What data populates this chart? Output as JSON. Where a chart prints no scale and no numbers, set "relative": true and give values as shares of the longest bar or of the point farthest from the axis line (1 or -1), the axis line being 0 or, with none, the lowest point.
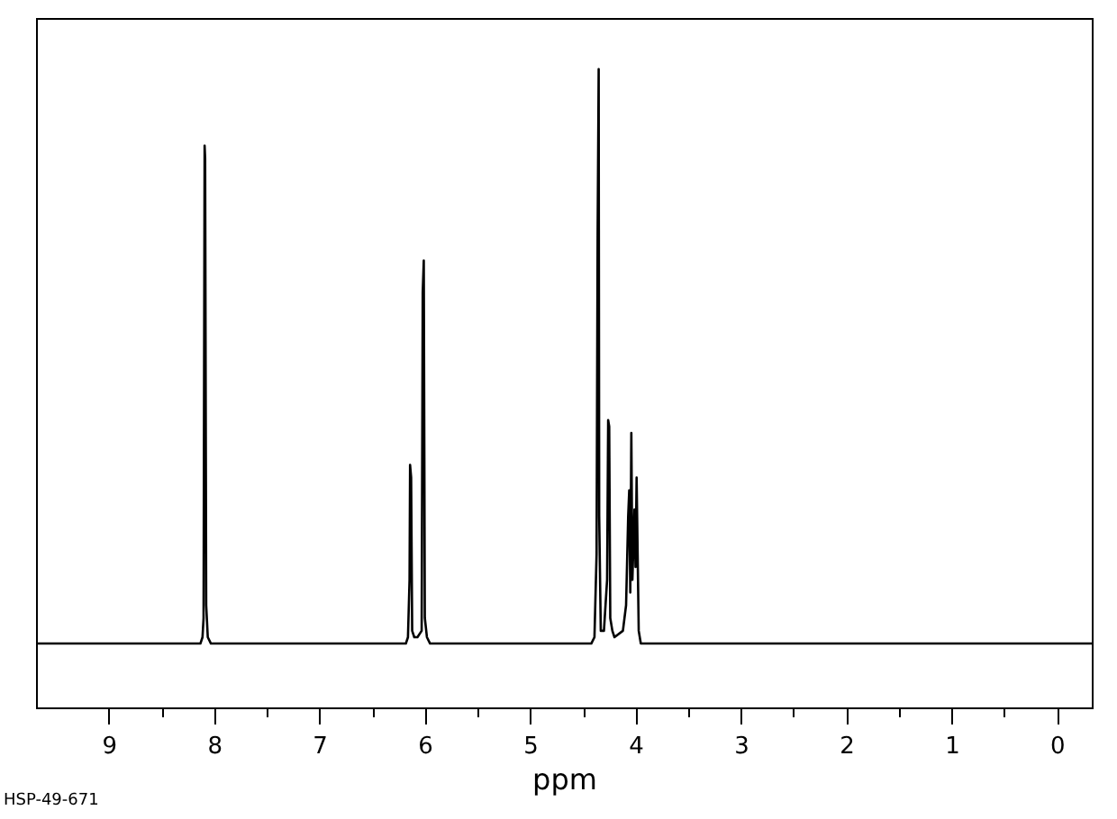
{
  "chart_data": {
    "type": "line",
    "relative": true,
    "xlabel": "ppm",
    "annotations": [
      "HSP-49-671"
    ],
    "xlim": [
      9.69,
      -0.33
    ],
    "xticks": [
      9,
      {
        "value": 8.5,
        "label": null
      },
      8,
      {
        "value": 7.5,
        "label": null
      },
      7,
      {
        "value": 6.5,
        "label": null
      },
      6,
      {
        "value": 5.5,
        "label": null
      },
      5,
      {
        "value": 4.5,
        "label": null
      },
      4,
      {
        "value": 3.5,
        "label": null
      },
      3,
      {
        "value": 2.5,
        "label": null
      },
      2,
      {
        "value": 1.5,
        "label": null
      },
      1,
      {
        "value": 0.5,
        "label": null
      },
      0
    ],
    "grid": false,
    "series": [
      {
        "color": "#000000",
        "x": [
          9.69,
          8.5,
          8.13,
          8.11,
          8.1,
          8.09,
          8.085,
          8.075,
          8.06,
          8.03,
          7.0,
          6.18,
          6.16,
          6.145,
          6.14,
          6.13,
          6.12,
          6.1,
          6.07,
          6.03,
          6.02,
          6.01,
          6.0,
          5.98,
          5.95,
          4.42,
          4.39,
          4.37,
          4.36,
          4.35,
          4.345,
          4.33,
          4.3,
          4.27,
          4.26,
          4.25,
          4.24,
          4.22,
          4.2,
          4.12,
          4.09,
          4.07,
          4.06,
          4.05,
          4.04,
          4.03,
          4.01,
          4.0,
          3.99,
          3.98,
          3.97,
          3.95,
          3.0,
          -0.33
        ],
        "values": [
          0.1,
          0.1,
          0.1,
          0.11,
          0.14,
          0.88,
          0.86,
          0.16,
          0.11,
          0.1,
          0.1,
          0.1,
          0.11,
          0.2,
          0.38,
          0.36,
          0.12,
          0.11,
          0.11,
          0.12,
          0.65,
          0.7,
          0.14,
          0.11,
          0.1,
          0.1,
          0.11,
          0.24,
          0.74,
          1.0,
          0.3,
          0.12,
          0.12,
          0.2,
          0.45,
          0.44,
          0.14,
          0.12,
          0.11,
          0.12,
          0.16,
          0.3,
          0.34,
          0.18,
          0.43,
          0.2,
          0.31,
          0.22,
          0.36,
          0.24,
          0.12,
          0.1,
          0.1,
          0.1
        ]
      }
    ]
  }
}
